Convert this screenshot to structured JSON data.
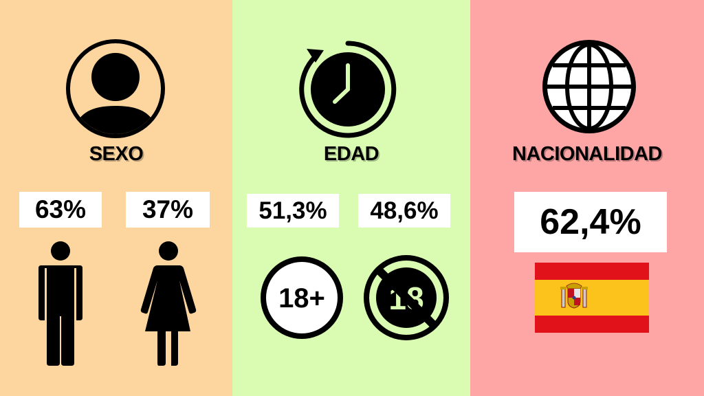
{
  "colors": {
    "sexo_bg": "#fdd59e",
    "edad_bg": "#d9fbb2",
    "nacionalidad_bg": "#fea5a5",
    "flag_red": "#e2121b",
    "flag_yellow": "#fbc31c"
  },
  "sexo": {
    "title": "SEXO",
    "icon": "user-circle-icon",
    "male": {
      "value": "63%",
      "icon": "male-icon"
    },
    "female": {
      "value": "37%",
      "icon": "female-icon"
    }
  },
  "edad": {
    "title": "EDAD",
    "icon": "clock-history-icon",
    "adults": {
      "value": "51,3%",
      "badge": "18+"
    },
    "minors": {
      "value": "48,6%",
      "badge": "18"
    }
  },
  "nacionalidad": {
    "title": "NACIONALIDAD",
    "icon": "globe-icon",
    "spain": {
      "value": "62,4%",
      "icon": "spain-flag-icon"
    }
  }
}
